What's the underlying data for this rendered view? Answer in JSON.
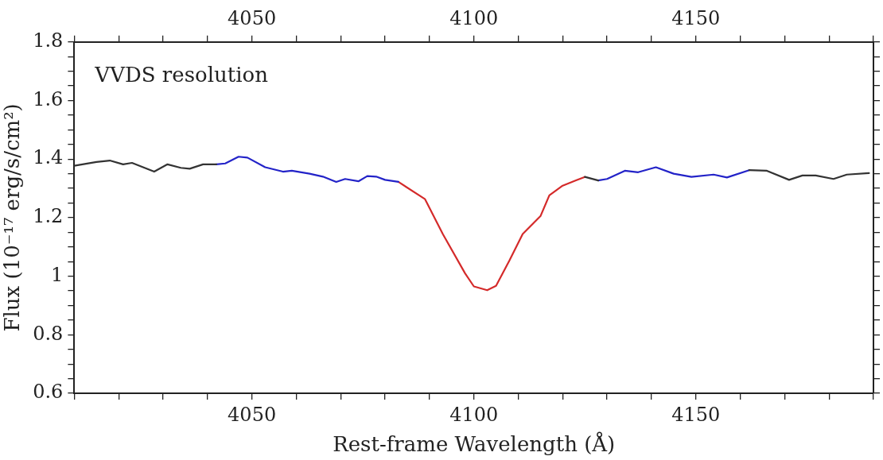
{
  "chart_data": {
    "type": "line",
    "xlabel": "Rest-frame Wavelength (Å)",
    "ylabel": "Flux (10⁻¹⁷ erg/s/cm²)",
    "annotations": [
      "VVDS resolution"
    ],
    "xlim": [
      4010,
      4190
    ],
    "x2lim": [
      4010,
      4190
    ],
    "xticks": [
      {
        "value": 4010,
        "label": null
      },
      {
        "value": 4020,
        "label": null
      },
      {
        "value": 4030,
        "label": null
      },
      {
        "value": 4040,
        "label": null
      },
      4050,
      {
        "value": 4060,
        "label": null
      },
      {
        "value": 4070,
        "label": null
      },
      {
        "value": 4080,
        "label": null
      },
      {
        "value": 4090,
        "label": null
      },
      4100,
      {
        "value": 4110,
        "label": null
      },
      {
        "value": 4120,
        "label": null
      },
      {
        "value": 4130,
        "label": null
      },
      {
        "value": 4140,
        "label": null
      },
      4150,
      {
        "value": 4160,
        "label": null
      },
      {
        "value": 4170,
        "label": null
      },
      {
        "value": 4180,
        "label": null
      },
      {
        "value": 4190,
        "label": null
      }
    ],
    "x2ticks": [
      {
        "value": 4010,
        "label": null
      },
      {
        "value": 4020,
        "label": null
      },
      {
        "value": 4030,
        "label": null
      },
      {
        "value": 4040,
        "label": null
      },
      4050,
      {
        "value": 4060,
        "label": null
      },
      {
        "value": 4070,
        "label": null
      },
      {
        "value": 4080,
        "label": null
      },
      {
        "value": 4090,
        "label": null
      },
      4100,
      {
        "value": 4110,
        "label": null
      },
      {
        "value": 4120,
        "label": null
      },
      {
        "value": 4130,
        "label": null
      },
      {
        "value": 4140,
        "label": null
      },
      4150,
      {
        "value": 4160,
        "label": null
      },
      {
        "value": 4170,
        "label": null
      },
      {
        "value": 4180,
        "label": null
      },
      {
        "value": 4190,
        "label": null
      }
    ],
    "ylim": [
      0.6,
      1.8
    ],
    "yticks": [
      {
        "value": 0.6,
        "label": "0.6"
      },
      {
        "value": 0.65,
        "label": null
      },
      {
        "value": 0.7,
        "label": null
      },
      {
        "value": 0.75,
        "label": null
      },
      {
        "value": 0.8,
        "label": "0.8"
      },
      {
        "value": 0.85,
        "label": null
      },
      {
        "value": 0.9,
        "label": null
      },
      {
        "value": 0.95,
        "label": null
      },
      1,
      {
        "value": 1.05,
        "label": null
      },
      {
        "value": 1.1,
        "label": null
      },
      {
        "value": 1.15,
        "label": null
      },
      {
        "value": 1.2,
        "label": "1.2"
      },
      {
        "value": 1.25,
        "label": null
      },
      {
        "value": 1.3,
        "label": null
      },
      {
        "value": 1.35,
        "label": null
      },
      {
        "value": 1.4,
        "label": "1.4"
      },
      {
        "value": 1.45,
        "label": null
      },
      {
        "value": 1.5,
        "label": null
      },
      {
        "value": 1.55,
        "label": null
      },
      {
        "value": 1.6,
        "label": "1.6"
      },
      {
        "value": 1.65,
        "label": null
      },
      {
        "value": 1.7,
        "label": null
      },
      {
        "value": 1.75,
        "label": null
      },
      {
        "value": 1.8,
        "label": "1.8"
      }
    ],
    "marker": "none",
    "line_style": "solid",
    "legend": false,
    "series": [
      {
        "color": "#333333",
        "x": [
          4010,
          4015,
          4018,
          4021,
          4023,
          4028,
          4031,
          4034,
          4036,
          4039,
          4042,
          4043,
          4124,
          4125,
          4128,
          4128.5,
          4162,
          4166,
          4171,
          4174,
          4177,
          4181,
          4184,
          4189
        ],
        "values": [
          1.377,
          1.39,
          1.395,
          1.382,
          1.387,
          1.357,
          1.382,
          1.37,
          1.367,
          1.382,
          1.382,
          null,
          null,
          1.339,
          1.327,
          null,
          1.362,
          1.36,
          1.329,
          1.344,
          1.344,
          1.332,
          1.347,
          1.352
        ]
      },
      {
        "color": "#2323c8",
        "x": [
          4042,
          4044,
          4047,
          4049,
          4053,
          4057,
          4059,
          4063,
          4066,
          4069,
          4071,
          4074,
          4076,
          4078,
          4080,
          4083,
          4084,
          4127,
          4128,
          4130,
          4134,
          4137,
          4141,
          4145,
          4149,
          4154,
          4157,
          4162
        ],
        "values": [
          1.382,
          1.385,
          1.408,
          1.405,
          1.372,
          1.357,
          1.36,
          1.35,
          1.34,
          1.322,
          1.332,
          1.324,
          1.342,
          1.34,
          1.329,
          1.322,
          null,
          null,
          1.327,
          1.332,
          1.36,
          1.355,
          1.372,
          1.35,
          1.339,
          1.347,
          1.337,
          1.362
        ]
      },
      {
        "color": "#d42a2a",
        "x": [
          4083,
          4089,
          4093,
          4098,
          4100,
          4103,
          4105,
          4108,
          4111,
          4115,
          4117,
          4120,
          4123,
          4125
        ],
        "values": [
          1.322,
          1.263,
          1.144,
          1.01,
          0.965,
          0.952,
          0.967,
          1.053,
          1.144,
          1.205,
          1.276,
          1.309,
          1.327,
          1.339
        ]
      }
    ]
  }
}
